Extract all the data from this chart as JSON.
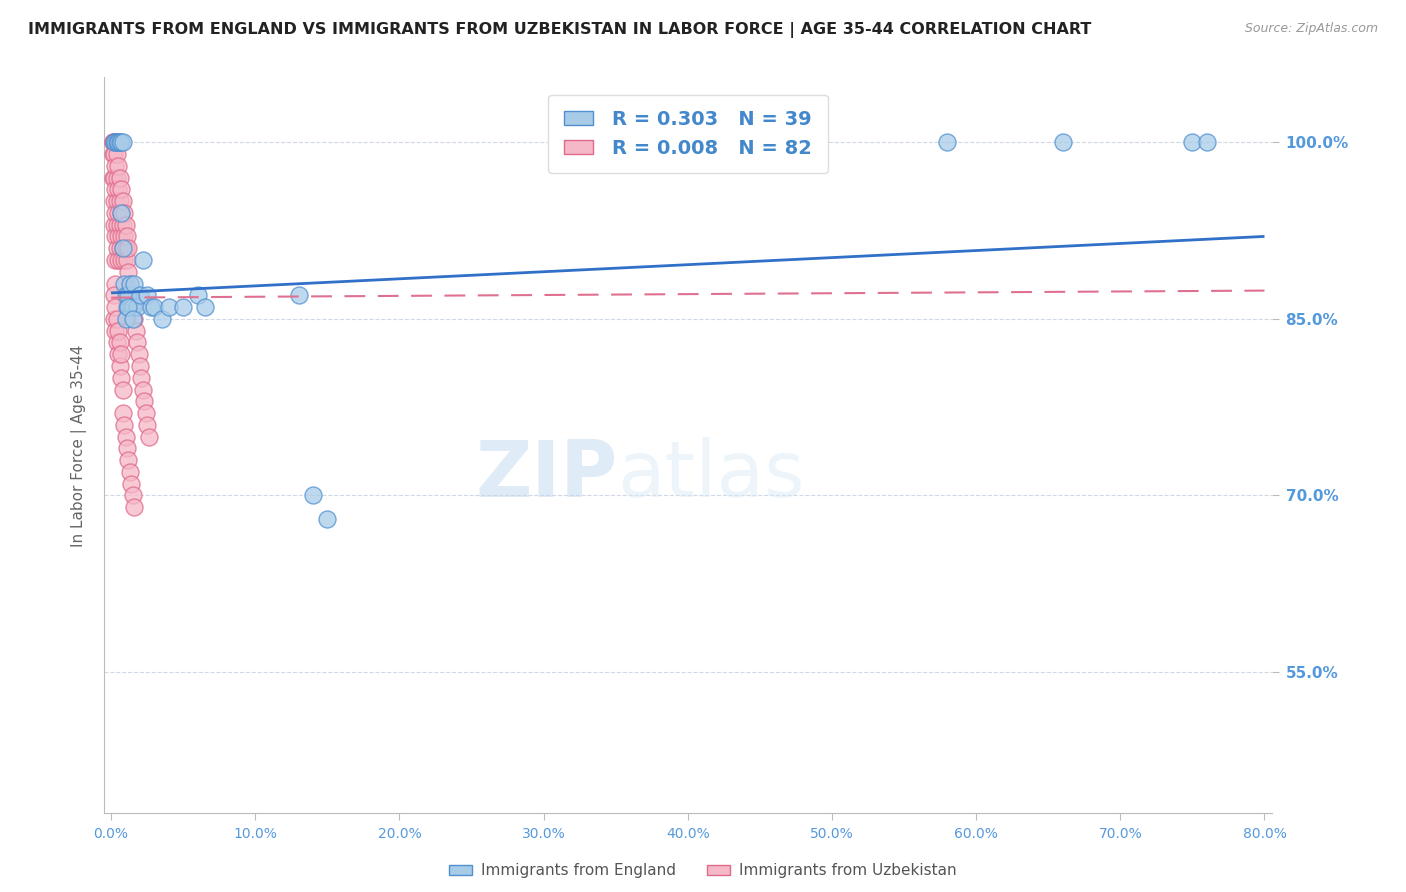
{
  "title": "IMMIGRANTS FROM ENGLAND VS IMMIGRANTS FROM UZBEKISTAN IN LABOR FORCE | AGE 35-44 CORRELATION CHART",
  "source": "Source: ZipAtlas.com",
  "ylabel": "In Labor Force | Age 35-44",
  "xlim": [
    -0.005,
    0.805
  ],
  "ylim": [
    0.43,
    1.055
  ],
  "xticks": [
    0.0,
    0.1,
    0.2,
    0.3,
    0.4,
    0.5,
    0.6,
    0.7,
    0.8
  ],
  "yticks": [
    0.55,
    0.7,
    0.85,
    1.0
  ],
  "ytick_labels": [
    "55.0%",
    "70.0%",
    "85.0%",
    "100.0%"
  ],
  "xtick_labels": [
    "0.0%",
    "10.0%",
    "20.0%",
    "30.0%",
    "40.0%",
    "50.0%",
    "60.0%",
    "70.0%",
    "80.0%"
  ],
  "england_color": "#a8cce8",
  "england_edge_color": "#5090d0",
  "uzbekistan_color": "#f5b8c8",
  "uzbekistan_edge_color": "#e06888",
  "england_R": 0.303,
  "england_N": 39,
  "uzbekistan_R": 0.008,
  "uzbekistan_N": 82,
  "legend_england_label": "Immigrants from England",
  "legend_uzbekistan_label": "Immigrants from Uzbekistan",
  "watermark_zip": "ZIP",
  "watermark_atlas": "atlas",
  "england_x": [
    0.002,
    0.003,
    0.004,
    0.005,
    0.005,
    0.006,
    0.007,
    0.007,
    0.008,
    0.008,
    0.009,
    0.01,
    0.011,
    0.012,
    0.013,
    0.014,
    0.015,
    0.016,
    0.018,
    0.02,
    0.022,
    0.025,
    0.028,
    0.03,
    0.035,
    0.04,
    0.05,
    0.06,
    0.065,
    0.13,
    0.14,
    0.15,
    0.58,
    0.66,
    0.75,
    0.76,
    0.01,
    0.012,
    0.015
  ],
  "england_y": [
    1.0,
    1.0,
    1.0,
    1.0,
    1.0,
    1.0,
    1.0,
    0.94,
    1.0,
    0.91,
    0.88,
    0.87,
    0.86,
    0.87,
    0.88,
    0.86,
    0.86,
    0.88,
    0.86,
    0.87,
    0.9,
    0.87,
    0.86,
    0.86,
    0.85,
    0.86,
    0.86,
    0.87,
    0.86,
    0.87,
    0.7,
    0.68,
    1.0,
    1.0,
    1.0,
    1.0,
    0.85,
    0.86,
    0.85
  ],
  "uzbekistan_x": [
    0.001,
    0.001,
    0.001,
    0.001,
    0.002,
    0.002,
    0.002,
    0.002,
    0.002,
    0.003,
    0.003,
    0.003,
    0.003,
    0.003,
    0.003,
    0.003,
    0.004,
    0.004,
    0.004,
    0.004,
    0.004,
    0.005,
    0.005,
    0.005,
    0.005,
    0.005,
    0.006,
    0.006,
    0.006,
    0.006,
    0.007,
    0.007,
    0.007,
    0.007,
    0.008,
    0.008,
    0.008,
    0.009,
    0.009,
    0.009,
    0.01,
    0.01,
    0.011,
    0.011,
    0.012,
    0.012,
    0.013,
    0.014,
    0.015,
    0.016,
    0.017,
    0.018,
    0.019,
    0.02,
    0.021,
    0.022,
    0.023,
    0.024,
    0.025,
    0.026,
    0.002,
    0.002,
    0.003,
    0.003,
    0.004,
    0.004,
    0.005,
    0.005,
    0.006,
    0.006,
    0.007,
    0.007,
    0.008,
    0.008,
    0.009,
    0.01,
    0.011,
    0.012,
    0.013,
    0.014,
    0.015,
    0.016
  ],
  "uzbekistan_y": [
    1.0,
    1.0,
    0.99,
    0.97,
    1.0,
    0.99,
    0.97,
    0.95,
    0.93,
    1.0,
    0.98,
    0.96,
    0.94,
    0.92,
    0.9,
    0.88,
    0.99,
    0.97,
    0.95,
    0.93,
    0.91,
    0.98,
    0.96,
    0.94,
    0.92,
    0.9,
    0.97,
    0.95,
    0.93,
    0.91,
    0.96,
    0.94,
    0.92,
    0.9,
    0.95,
    0.93,
    0.91,
    0.94,
    0.92,
    0.9,
    0.93,
    0.91,
    0.92,
    0.9,
    0.91,
    0.89,
    0.88,
    0.87,
    0.86,
    0.85,
    0.84,
    0.83,
    0.82,
    0.81,
    0.8,
    0.79,
    0.78,
    0.77,
    0.76,
    0.75,
    0.87,
    0.85,
    0.86,
    0.84,
    0.85,
    0.83,
    0.84,
    0.82,
    0.83,
    0.81,
    0.82,
    0.8,
    0.79,
    0.77,
    0.76,
    0.75,
    0.74,
    0.73,
    0.72,
    0.71,
    0.7,
    0.69
  ],
  "england_trend": [
    0.872,
    0.92
  ],
  "uzbekistan_trend": [
    0.868,
    0.874
  ],
  "trend_x": [
    0.0,
    0.8
  ]
}
